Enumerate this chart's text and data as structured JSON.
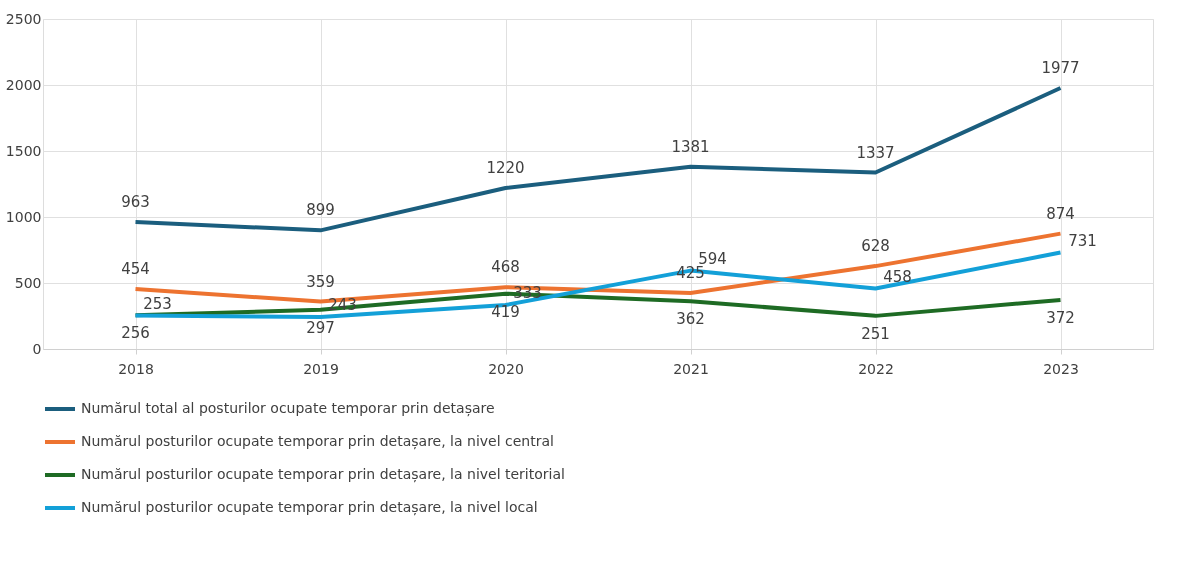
{
  "chart_data": {
    "type": "line",
    "categories": [
      "2018",
      "2019",
      "2020",
      "2021",
      "2022",
      "2023"
    ],
    "series": [
      {
        "name": "Numărul total al posturilor ocupate temporar prin detașare",
        "color": "#1b5e7e",
        "values": [
          963,
          899,
          1220,
          1381,
          1337,
          1977
        ]
      },
      {
        "name": "Numărul posturilor ocupate temporar prin detașare, la nivel central",
        "color": "#ed7330",
        "values": [
          454,
          359,
          468,
          425,
          628,
          874
        ]
      },
      {
        "name": "Numărul posturilor ocupate temporar prin detașare, la nivel teritorial",
        "color": "#1e6b24",
        "values": [
          256,
          297,
          419,
          362,
          251,
          372
        ]
      },
      {
        "name": "Numărul posturilor ocupate temporar prin detașare, la nivel local",
        "color": "#13a0d8",
        "values": [
          253,
          243,
          333,
          594,
          458,
          731
        ]
      }
    ],
    "ylim": [
      0,
      2500
    ],
    "yticks": [
      0,
      500,
      1000,
      1500,
      2000,
      2500
    ],
    "grid": true,
    "legend": "bottom",
    "data_labels": true,
    "marker": "none",
    "line_style": "solid"
  }
}
